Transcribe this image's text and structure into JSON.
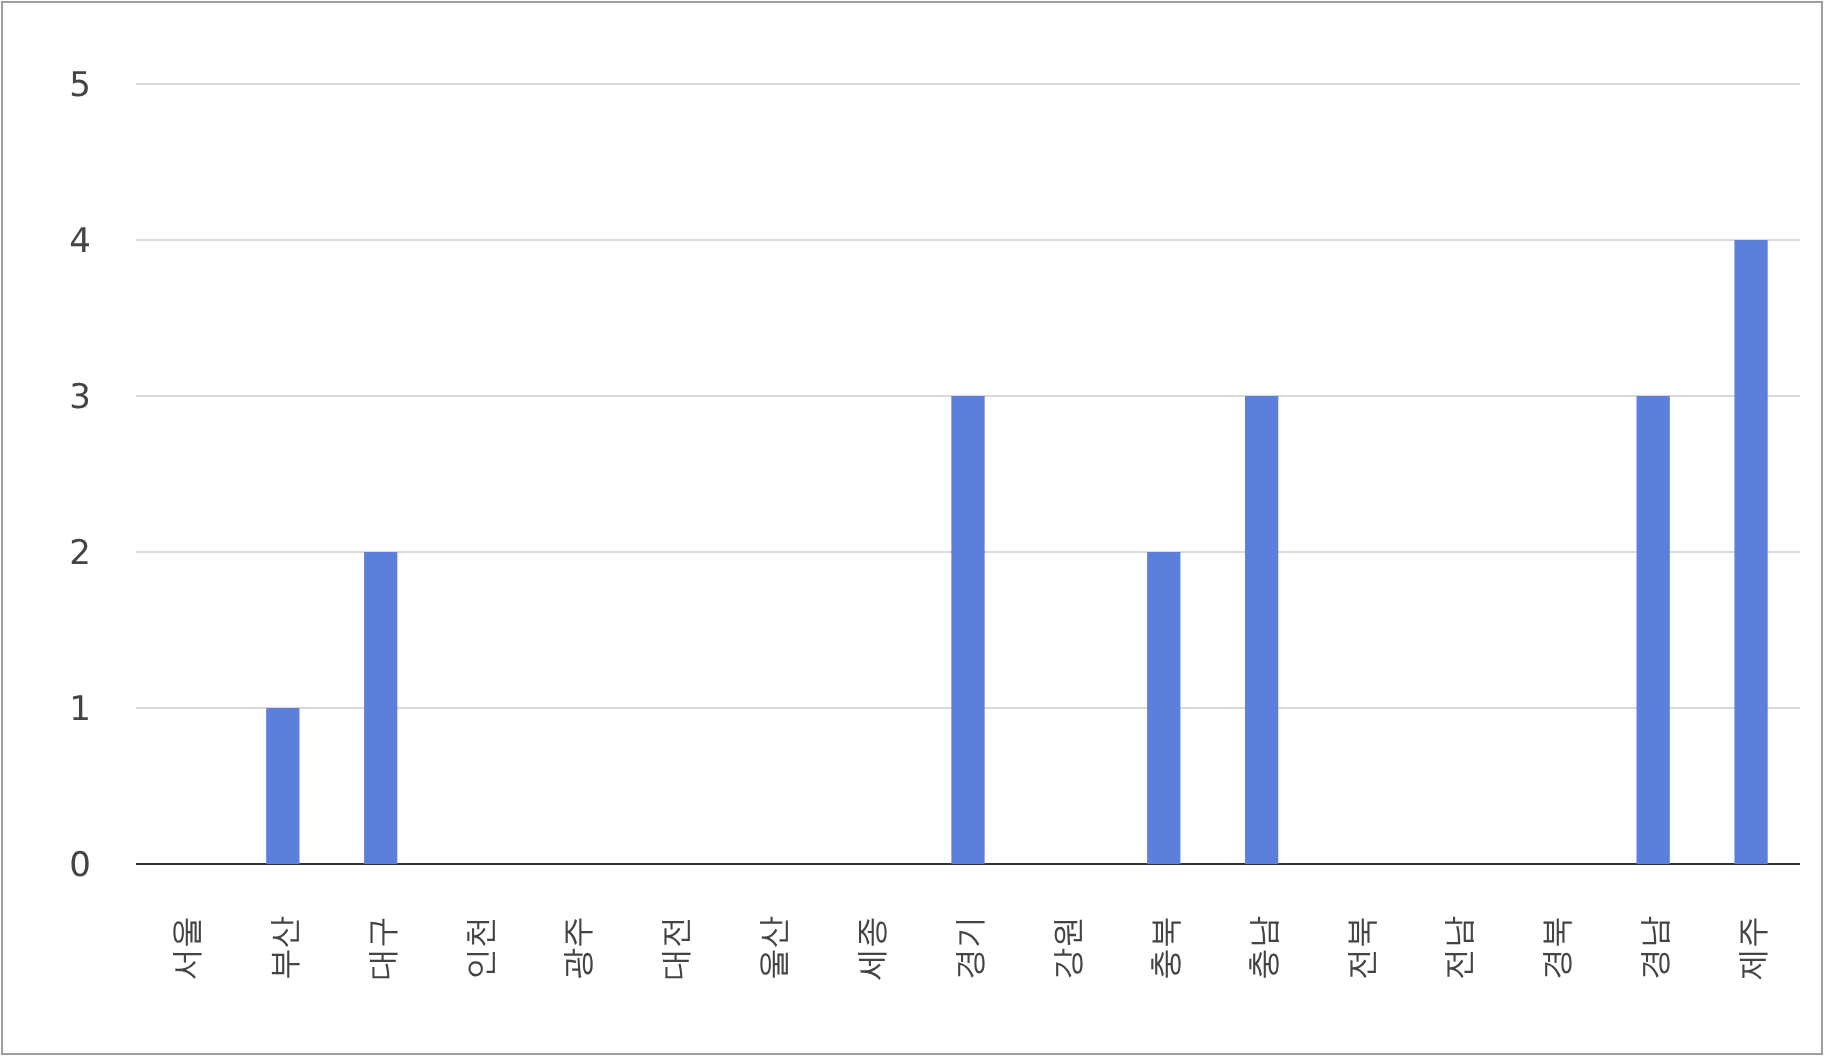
{
  "chart_data": {
    "type": "bar",
    "categories": [
      "서울",
      "부산",
      "대구",
      "인천",
      "광주",
      "대전",
      "울산",
      "세종",
      "경기",
      "강원",
      "충북",
      "충남",
      "전북",
      "전남",
      "경북",
      "경남",
      "제주"
    ],
    "values": [
      0,
      1,
      2,
      0,
      0,
      0,
      0,
      0,
      3,
      0,
      2,
      3,
      0,
      0,
      0,
      3,
      4
    ],
    "color": "#5b7fdb",
    "ylim": [
      0,
      5
    ],
    "yticks": [
      0,
      1,
      2,
      3,
      4,
      5
    ],
    "grid": "y"
  }
}
